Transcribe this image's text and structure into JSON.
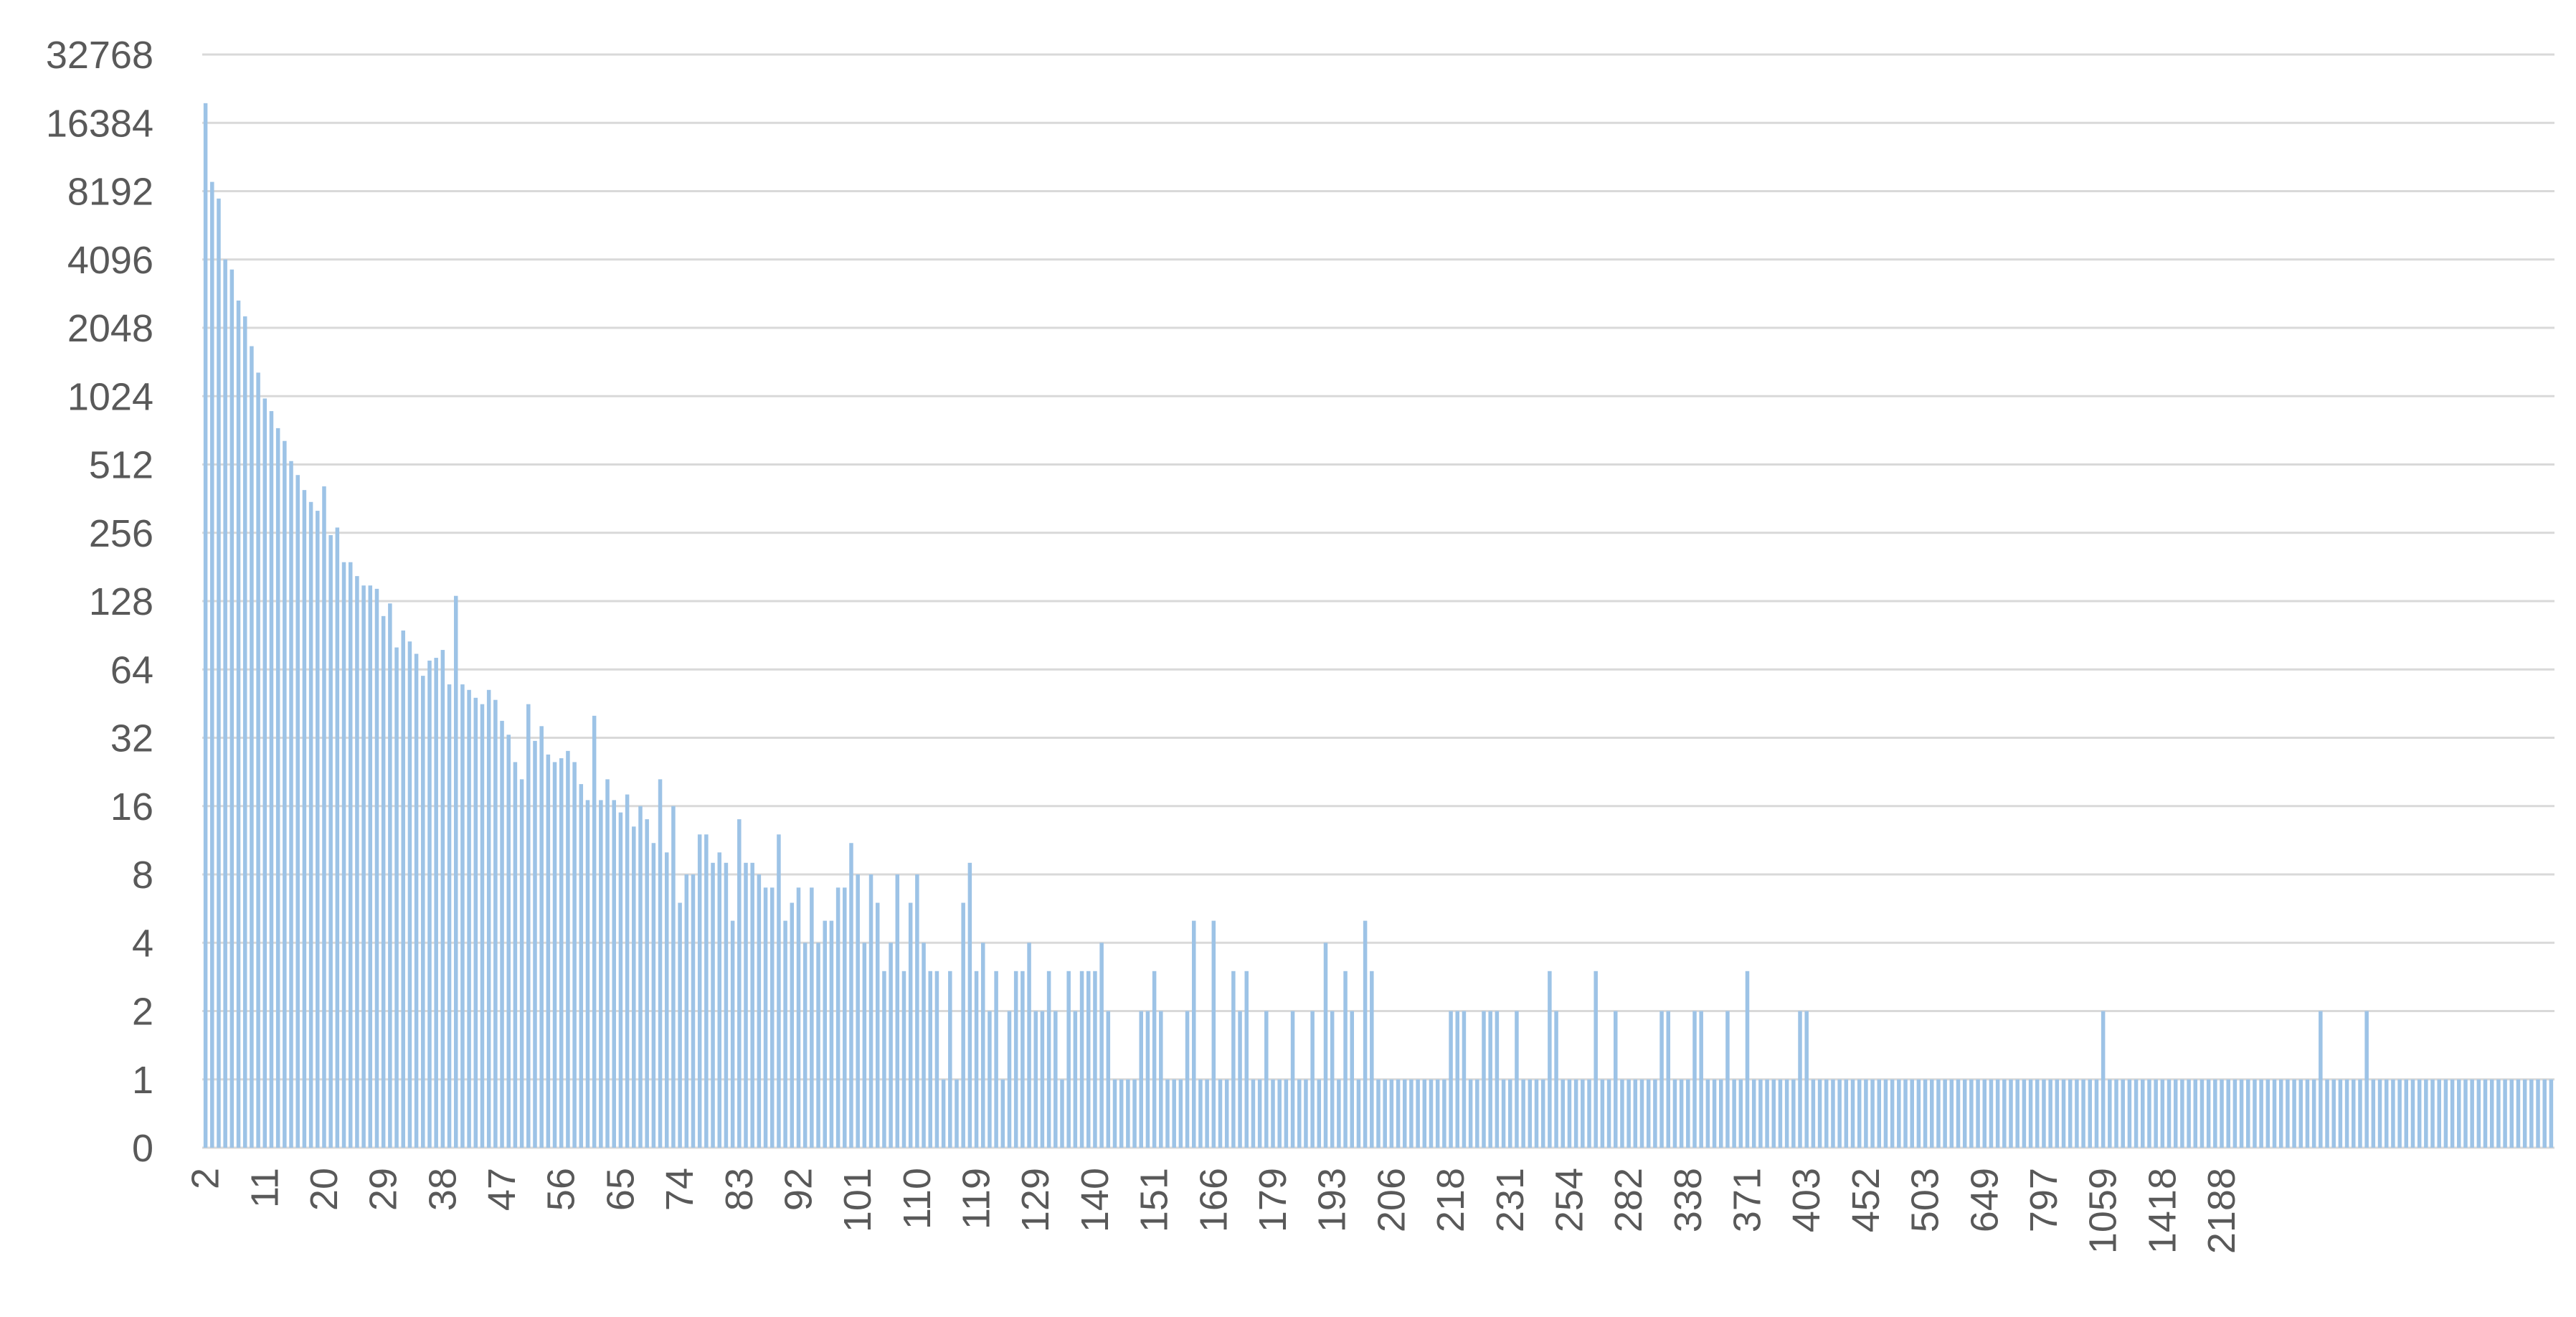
{
  "chart_data": {
    "type": "bar",
    "title": "",
    "xlabel": "",
    "ylabel": "",
    "yscale": "log2",
    "ylim": [
      0,
      32768
    ],
    "grid": true,
    "legend": "none",
    "colors": {
      "bar": "#9dc3e6",
      "grid": "#d9d9d9",
      "text": "#595959"
    },
    "y_tick_labels": [
      "0",
      "1",
      "2",
      "4",
      "8",
      "16",
      "32",
      "64",
      "128",
      "256",
      "512",
      "1024",
      "2048",
      "4096",
      "8192",
      "16384",
      "32768"
    ],
    "x_tick_labels": [
      "2",
      "11",
      "20",
      "29",
      "38",
      "47",
      "56",
      "65",
      "74",
      "83",
      "92",
      "101",
      "110",
      "119",
      "129",
      "140",
      "151",
      "166",
      "179",
      "193",
      "206",
      "218",
      "231",
      "254",
      "282",
      "338",
      "371",
      "403",
      "452",
      "503",
      "649",
      "797",
      "1059",
      "1418",
      "2188"
    ],
    "values": [
      20000,
      9000,
      7600,
      4100,
      3700,
      2700,
      2300,
      1700,
      1300,
      1000,
      880,
      740,
      650,
      530,
      460,
      395,
      350,
      320,
      410,
      250,
      270,
      190,
      190,
      165,
      150,
      150,
      145,
      110,
      125,
      80,
      95,
      85,
      75,
      60,
      70,
      72,
      78,
      55,
      135,
      55,
      52,
      48,
      45,
      52,
      47,
      38,
      33,
      25,
      21,
      45,
      31,
      36,
      27,
      25,
      26,
      28,
      25,
      20,
      17,
      40,
      17,
      21,
      17,
      15,
      18,
      13,
      16,
      14,
      11,
      21,
      10,
      16,
      6,
      8,
      8,
      12,
      12,
      9,
      10,
      9,
      5,
      14,
      9,
      9,
      8,
      7,
      7,
      12,
      5,
      6,
      7,
      4,
      7,
      4,
      5,
      5,
      7,
      7,
      11,
      8,
      4,
      8,
      6,
      3,
      4,
      8,
      3,
      6,
      8,
      4,
      3,
      3,
      1,
      3,
      1,
      6,
      9,
      3,
      4,
      2,
      3,
      1,
      2,
      3,
      3,
      4,
      2,
      2,
      3,
      2,
      1,
      3,
      2,
      3,
      3,
      3,
      4,
      2,
      1,
      1,
      1,
      1,
      2,
      2,
      3,
      2,
      1,
      1,
      1,
      2,
      5,
      1,
      1,
      5,
      1,
      1,
      3,
      2,
      3,
      1,
      1,
      2,
      1,
      1,
      1,
      2,
      1,
      1,
      2,
      1,
      4,
      2,
      1,
      3,
      2,
      1,
      5,
      3,
      1,
      1,
      1,
      1,
      1,
      1,
      1,
      1,
      1,
      1,
      1,
      2,
      2,
      2,
      1,
      1,
      2,
      2,
      2,
      1,
      1,
      2,
      1,
      1,
      1,
      1,
      3,
      2,
      1,
      1,
      1,
      1,
      1,
      3,
      1,
      1,
      2,
      1,
      1,
      1,
      1,
      1,
      1,
      2,
      2,
      1,
      1,
      1,
      2,
      2,
      1,
      1,
      1,
      2,
      1,
      1,
      3,
      1,
      1,
      1,
      1,
      1,
      1,
      1,
      2,
      2,
      1,
      1,
      1,
      1,
      1,
      1,
      1,
      1,
      1,
      1,
      1,
      1,
      1,
      1,
      1,
      1,
      1,
      1,
      1,
      1,
      1,
      1,
      1,
      1,
      1,
      1,
      1,
      1,
      1,
      1,
      1,
      1,
      1,
      1,
      1,
      1,
      1,
      1,
      1,
      1,
      1,
      1,
      1,
      1,
      2,
      1,
      1,
      1,
      1,
      1,
      1,
      1,
      1,
      1,
      1,
      1,
      1,
      1,
      1,
      1,
      1,
      1,
      1,
      1,
      1,
      1,
      1,
      1,
      1,
      1,
      1,
      1,
      1,
      1,
      1,
      1,
      1,
      2,
      1,
      1,
      1,
      1,
      1,
      1,
      2,
      1,
      1,
      1,
      1,
      1,
      1,
      1,
      1,
      1,
      1,
      1,
      1,
      1,
      1,
      1,
      1,
      1,
      1,
      1,
      1,
      1,
      1,
      1,
      1,
      1,
      1,
      1,
      1
    ]
  }
}
